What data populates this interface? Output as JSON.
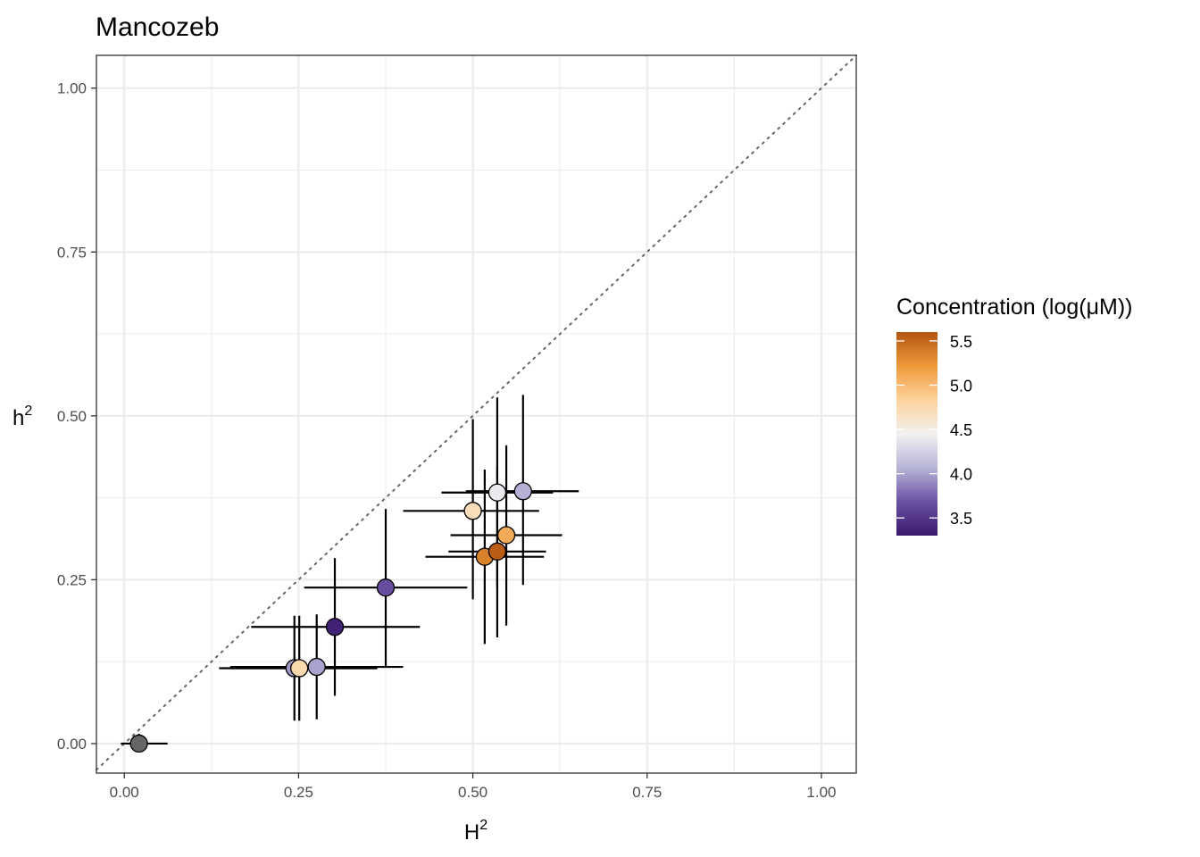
{
  "chart_data": {
    "type": "scatter",
    "title": "Mancozeb",
    "xlabel": "H",
    "xlabel_sup": "2",
    "ylabel": "h",
    "ylabel_sup": "2",
    "xlim": [
      -0.04,
      1.05
    ],
    "ylim": [
      -0.045,
      1.05
    ],
    "x_ticks": [
      0,
      0.25,
      0.5,
      0.75,
      1
    ],
    "x_tick_labels": [
      "0.00",
      "0.25",
      "0.50",
      "0.75",
      "1.00"
    ],
    "y_ticks": [
      0,
      0.25,
      0.5,
      0.75,
      1
    ],
    "y_tick_labels": [
      "0.00",
      "0.25",
      "0.50",
      "0.75",
      "1.00"
    ],
    "grid": true,
    "reference_line": "y = x (dotted)",
    "legend": {
      "title": "Concentration (log(μM))",
      "position": "right",
      "min": 3.3,
      "max": 5.6,
      "ticks": [
        3.5,
        4.0,
        4.5,
        5.0,
        5.5
      ],
      "tick_labels": [
        "3.5",
        "4.0",
        "4.5",
        "5.0",
        "5.5"
      ],
      "colors": [
        "#3b1a6e",
        "#6a51a3",
        "#b7b4d8",
        "#f2f1f0",
        "#fdd29c",
        "#ee9a3a",
        "#b35410"
      ]
    },
    "points": [
      {
        "x": 0.021,
        "y": 0.0,
        "xmin": -0.005,
        "xmax": 0.062,
        "ymin": -0.005,
        "ymax": 0.015,
        "conc": null,
        "color": "#666666"
      },
      {
        "x": 0.244,
        "y": 0.115,
        "xmin": 0.136,
        "xmax": 0.363,
        "ymin": 0.035,
        "ymax": 0.195,
        "conc": 3.95
      },
      {
        "x": 0.251,
        "y": 0.115,
        "xmin": 0.151,
        "xmax": 0.362,
        "ymin": 0.035,
        "ymax": 0.195,
        "conc": 4.75
      },
      {
        "x": 0.276,
        "y": 0.117,
        "xmin": 0.152,
        "xmax": 0.4,
        "ymin": 0.037,
        "ymax": 0.197,
        "conc": 4.0
      },
      {
        "x": 0.302,
        "y": 0.178,
        "xmin": 0.182,
        "xmax": 0.424,
        "ymin": 0.073,
        "ymax": 0.283,
        "conc": 3.35
      },
      {
        "x": 0.375,
        "y": 0.238,
        "xmin": 0.258,
        "xmax": 0.492,
        "ymin": 0.118,
        "ymax": 0.358,
        "conc": 3.65
      },
      {
        "x": 0.5,
        "y": 0.355,
        "xmin": 0.4,
        "xmax": 0.595,
        "ymin": 0.22,
        "ymax": 0.495,
        "conc": 4.7
      },
      {
        "x": 0.535,
        "y": 0.383,
        "xmin": 0.455,
        "xmax": 0.615,
        "ymin": 0.238,
        "ymax": 0.528,
        "conc": 4.4
      },
      {
        "x": 0.572,
        "y": 0.385,
        "xmin": 0.49,
        "xmax": 0.652,
        "ymin": 0.242,
        "ymax": 0.532,
        "conc": 4.05
      },
      {
        "x": 0.548,
        "y": 0.318,
        "xmin": 0.468,
        "xmax": 0.628,
        "ymin": 0.18,
        "ymax": 0.455,
        "conc": 5.1
      },
      {
        "x": 0.517,
        "y": 0.285,
        "xmin": 0.432,
        "xmax": 0.602,
        "ymin": 0.152,
        "ymax": 0.418,
        "conc": 5.35
      },
      {
        "x": 0.535,
        "y": 0.293,
        "xmin": 0.465,
        "xmax": 0.605,
        "ymin": 0.162,
        "ymax": 0.423,
        "conc": 5.55
      }
    ]
  }
}
